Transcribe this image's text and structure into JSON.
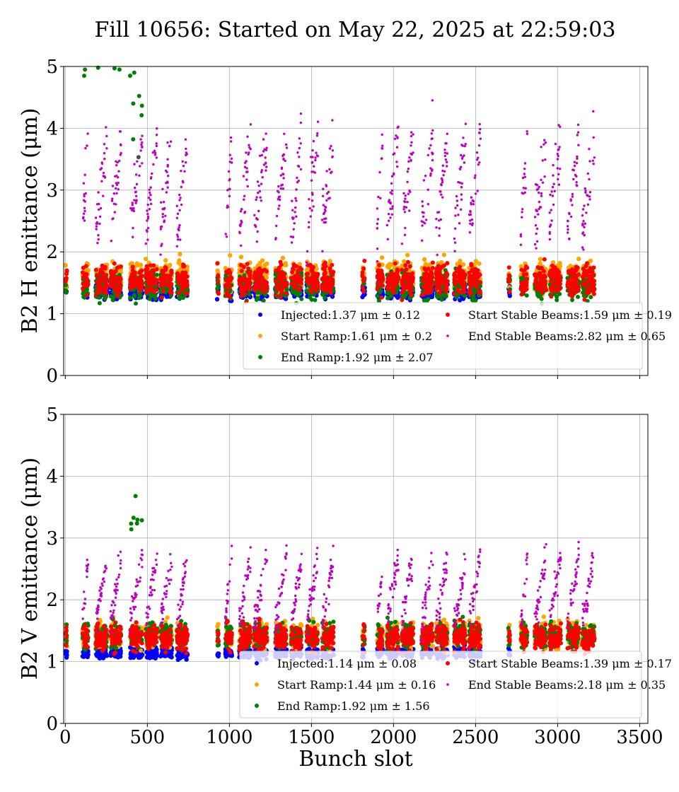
{
  "figure": {
    "title": "Fill 10656: Started on May 22, 2025 at 22:59:03",
    "xlabel": "Bunch slot"
  },
  "chart_data": [
    {
      "type": "scatter",
      "ylabel": "B2 H emittance (μm)",
      "xlim": [
        -10,
        3550
      ],
      "ylim": [
        0,
        5
      ],
      "xticks": [
        0,
        500,
        1000,
        1500,
        2000,
        2500,
        3000,
        3500
      ],
      "yticks": [
        0,
        1,
        2,
        3,
        4,
        5
      ],
      "show_xtick_labels": false,
      "grid": true,
      "legend_position": "lower-right",
      "series": [
        {
          "name": "Injected",
          "color": "#0000ff",
          "mean": 1.37,
          "std": 0.12,
          "label": "Injected:1.37 μm ± 0.12"
        },
        {
          "name": "Start Ramp",
          "color": "#ffa500",
          "mean": 1.61,
          "std": 0.2,
          "label": "Start Ramp:1.61 μm ± 0.2"
        },
        {
          "name": "End Ramp",
          "color": "#008000",
          "mean": 1.92,
          "std": 2.07,
          "label": "End Ramp:1.92 μm ± 2.07"
        },
        {
          "name": "Start Stable Beams",
          "color": "#ff0000",
          "mean": 1.59,
          "std": 0.19,
          "label": "Start Stable Beams:1.59 μm ± 0.19"
        },
        {
          "name": "End Stable Beams",
          "color": "#bf00bf",
          "mean": 2.82,
          "std": 0.65,
          "label": "End Stable Beams:2.82 μm ± 0.65"
        }
      ]
    },
    {
      "type": "scatter",
      "ylabel": "B2 V emittance (μm)",
      "xlim": [
        -10,
        3550
      ],
      "ylim": [
        0,
        5
      ],
      "xticks": [
        0,
        500,
        1000,
        1500,
        2000,
        2500,
        3000,
        3500
      ],
      "yticks": [
        0,
        1,
        2,
        3,
        4,
        5
      ],
      "show_xtick_labels": true,
      "grid": true,
      "legend_position": "lower-right",
      "series": [
        {
          "name": "Injected",
          "color": "#0000ff",
          "mean": 1.14,
          "std": 0.08,
          "label": "Injected:1.14 μm ± 0.08"
        },
        {
          "name": "Start Ramp",
          "color": "#ffa500",
          "mean": 1.44,
          "std": 0.16,
          "label": "Start Ramp:1.44 μm ± 0.16"
        },
        {
          "name": "End Ramp",
          "color": "#008000",
          "mean": 1.92,
          "std": 1.56,
          "label": "End Ramp:1.92 μm ± 1.56"
        },
        {
          "name": "Start Stable Beams",
          "color": "#ff0000",
          "mean": 1.39,
          "std": 0.17,
          "label": "Start Stable Beams:1.39 μm ± 0.17"
        },
        {
          "name": "End Stable Beams",
          "color": "#bf00bf",
          "mean": 2.18,
          "std": 0.35,
          "label": "End Stable Beams:2.18 μm ± 0.35"
        }
      ]
    }
  ]
}
